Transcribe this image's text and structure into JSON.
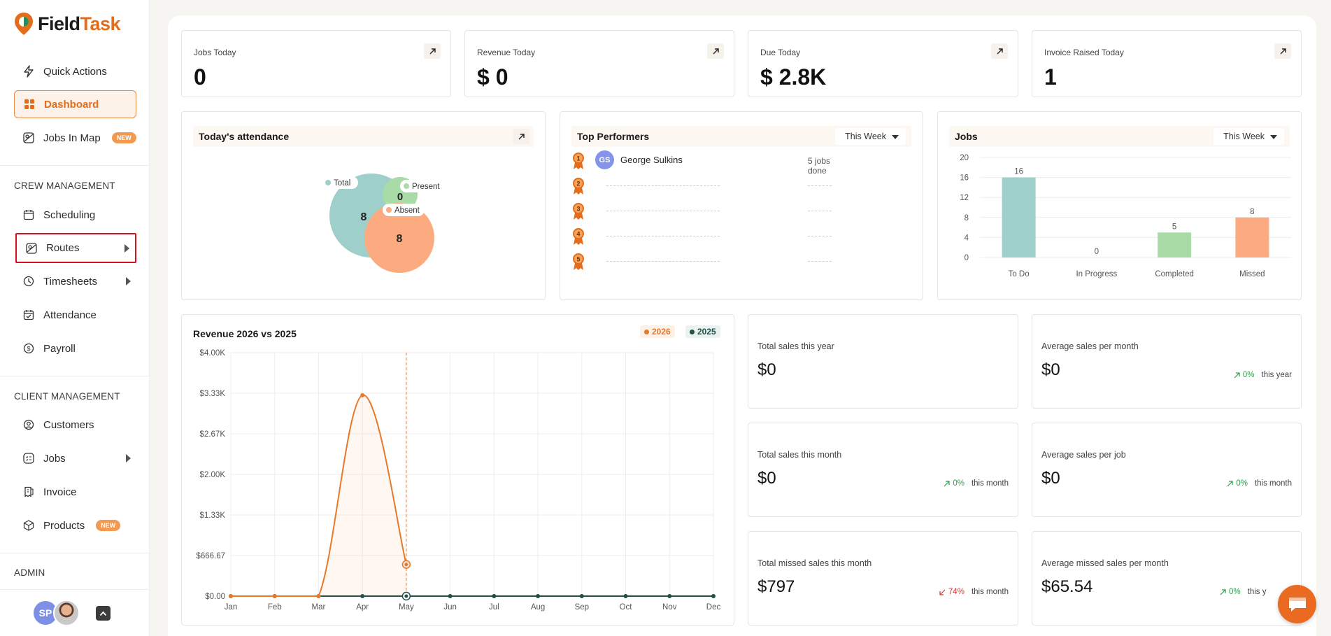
{
  "app": {
    "logo_prefix": "Field",
    "logo_suffix": "Task"
  },
  "sidebar": {
    "quick_actions": "Quick Actions",
    "dashboard": "Dashboard",
    "jobs_in_map": "Jobs In Map",
    "new_badge": "NEW",
    "crew_label": "CREW MANAGEMENT",
    "scheduling": "Scheduling",
    "routes": "Routes",
    "timesheets": "Timesheets",
    "attendance": "Attendance",
    "payroll": "Payroll",
    "client_label": "CLIENT MANAGEMENT",
    "customers": "Customers",
    "jobs": "Jobs",
    "invoice": "Invoice",
    "products": "Products",
    "admin_label": "ADMIN",
    "user_initials": "SP"
  },
  "kpis": [
    {
      "label": "Jobs Today",
      "value": "0"
    },
    {
      "label": "Revenue Today",
      "value": "$ 0"
    },
    {
      "label": "Due Today",
      "value": "$ 2.8K"
    },
    {
      "label": "Invoice Raised Today",
      "value": "1"
    }
  ],
  "attendance": {
    "title": "Today's attendance",
    "total_label": "Total",
    "total_value": "8",
    "present_label": "Present",
    "present_value": "0",
    "absent_label": "Absent",
    "absent_value": "8",
    "colors": {
      "total": "#9fcfca",
      "present": "#a9dba7",
      "absent": "#fbab7f"
    }
  },
  "top_performers": {
    "title": "Top Performers",
    "period": "This Week",
    "ranks": [
      "1",
      "2",
      "3",
      "4",
      "5"
    ],
    "leader": {
      "initials": "GS",
      "name": "George Sulkins",
      "jobs": "5 jobs done"
    }
  },
  "jobs_chart": {
    "title": "Jobs",
    "period": "This Week",
    "chart_data": {
      "type": "bar",
      "categories": [
        "To Do",
        "In Progress",
        "Completed",
        "Missed"
      ],
      "values": [
        16,
        0,
        5,
        8
      ],
      "colors": [
        "#9fcfca",
        "#9fcfca",
        "#a9dba7",
        "#fbab7f"
      ],
      "ylim": [
        0,
        20
      ],
      "yticks": [
        "0",
        "4",
        "8",
        "12",
        "16",
        "20"
      ]
    }
  },
  "revenue_chart": {
    "title": "Revenue 2026 vs 2025",
    "legend": [
      {
        "name": "2026",
        "color": "#e6792a",
        "bg": "#fdf0e4"
      },
      {
        "name": "2025",
        "color": "#1f4f46",
        "bg": "#eaf3f0"
      }
    ],
    "chart_data": {
      "type": "line",
      "categories": [
        "Jan",
        "Feb",
        "Mar",
        "Apr",
        "May",
        "Jun",
        "Jul",
        "Aug",
        "Sep",
        "Oct",
        "Nov",
        "Dec"
      ],
      "yticks": [
        "$0.00",
        "$666.67",
        "$1.33K",
        "$2.00K",
        "$2.67K",
        "$3.33K",
        "$4.00K"
      ],
      "ylim": [
        0,
        4000
      ],
      "series": [
        {
          "name": "2026",
          "values": [
            0,
            0,
            0,
            3300,
            520,
            null,
            null,
            null,
            null,
            null,
            null,
            null
          ]
        },
        {
          "name": "2025",
          "values": [
            0,
            0,
            0,
            0,
            0,
            0,
            0,
            0,
            0,
            0,
            0,
            0
          ]
        }
      ],
      "highlight_index": 4
    }
  },
  "stats": [
    {
      "label": "Total sales this year",
      "value": "$0"
    },
    {
      "label": "Average sales per month",
      "value": "$0",
      "change": "0%",
      "dir": "up",
      "period": "this year"
    },
    {
      "label": "Total sales this month",
      "value": "$0",
      "change": "0%",
      "dir": "up",
      "period": "this month"
    },
    {
      "label": "Average sales per job",
      "value": "$0",
      "change": "0%",
      "dir": "up",
      "period": "this month"
    },
    {
      "label": "Total missed sales this month",
      "value": "$797",
      "change": "74%",
      "dir": "down",
      "period": "this month"
    },
    {
      "label": "Average missed sales per month",
      "value": "$65.54",
      "change": "0%",
      "dir": "up",
      "period": "this y"
    }
  ]
}
